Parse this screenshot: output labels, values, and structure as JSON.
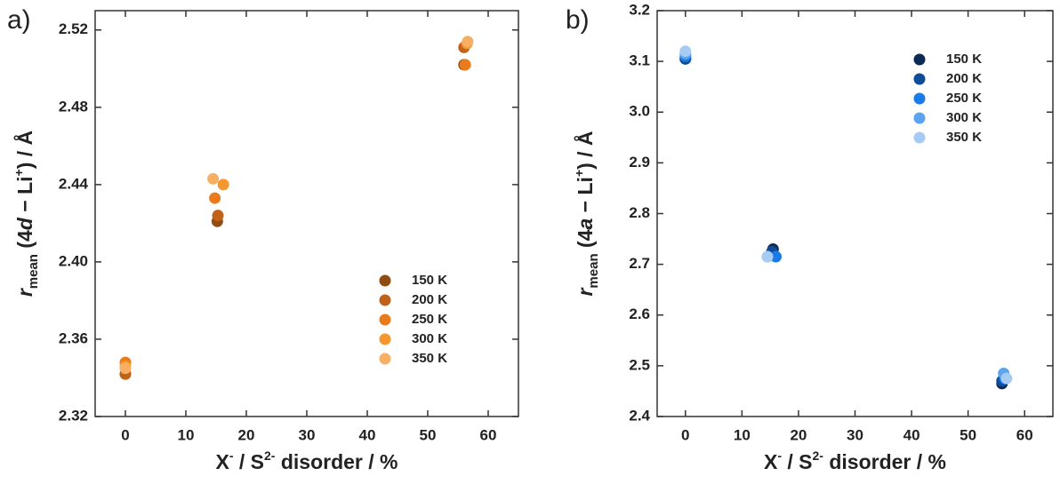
{
  "chart_data": [
    {
      "type": "scatter",
      "panel_label": "a)",
      "xlabel_parts": [
        "X",
        "-",
        " / S",
        "2-",
        " disorder / %"
      ],
      "ylabel_parts": [
        "r",
        "mean",
        " (4",
        "d",
        " − Li",
        "+",
        ") / Å"
      ],
      "xlim": [
        -5,
        65
      ],
      "xticks": [
        0,
        10,
        20,
        30,
        40,
        50,
        60
      ],
      "ylim": [
        2.32,
        2.53
      ],
      "yticks": [
        2.32,
        2.36,
        {
          "value": 2.4,
          "label": "2.40"
        },
        2.44,
        2.48,
        2.52
      ],
      "legend": "lower right",
      "series": [
        {
          "name": "150 K",
          "color": "#8f4d14",
          "x": [
            0,
            15.2,
            56
          ],
          "values": [
            2.342,
            2.421,
            2.502
          ]
        },
        {
          "name": "200 K",
          "color": "#c0621a",
          "x": [
            0,
            15.3,
            56
          ],
          "values": [
            2.342,
            2.424,
            2.511
          ]
        },
        {
          "name": "250 K",
          "color": "#e97b1c",
          "x": [
            0,
            14.8,
            56.2
          ],
          "values": [
            2.348,
            2.433,
            2.502
          ]
        },
        {
          "name": "300 K",
          "color": "#f5962e",
          "x": [
            0,
            16.2,
            56.5
          ],
          "values": [
            2.346,
            2.44,
            2.513
          ]
        },
        {
          "name": "350 K",
          "color": "#f7b063",
          "x": [
            0,
            14.5,
            56.6
          ],
          "values": [
            2.345,
            2.443,
            2.514
          ]
        }
      ]
    },
    {
      "type": "scatter",
      "panel_label": "b)",
      "xlabel_parts": [
        "X",
        "-",
        " / S",
        "2-",
        " disorder / %"
      ],
      "ylabel_parts": [
        "r",
        "mean",
        " (4",
        "a",
        " − Li",
        "+",
        ") / Å"
      ],
      "xlim": [
        -5,
        65
      ],
      "xticks": [
        0,
        10,
        20,
        30,
        40,
        50,
        60
      ],
      "ylim": [
        2.4,
        3.2
      ],
      "yticks": [
        2.4,
        2.5,
        2.6,
        2.7,
        2.8,
        2.9,
        {
          "value": 3,
          "label": "3.0"
        },
        3.1,
        3.2
      ],
      "legend": "upper right",
      "series": [
        {
          "name": "150 K",
          "color": "#0d2a57",
          "x": [
            0,
            15.5,
            56
          ],
          "values": [
            3.105,
            2.73,
            2.465
          ]
        },
        {
          "name": "200 K",
          "color": "#0f4c9a",
          "x": [
            0,
            15.3,
            56
          ],
          "values": [
            3.105,
            2.725,
            2.47
          ]
        },
        {
          "name": "250 K",
          "color": "#1a7be8",
          "x": [
            0,
            16,
            56.5
          ],
          "values": [
            3.11,
            2.715,
            2.475
          ]
        },
        {
          "name": "300 K",
          "color": "#5aa4ef",
          "x": [
            0,
            14.5,
            56.3
          ],
          "values": [
            3.115,
            2.715,
            2.485
          ]
        },
        {
          "name": "350 K",
          "color": "#a6ccf5",
          "x": [
            0,
            14.5,
            56.8
          ],
          "values": [
            3.12,
            2.715,
            2.475
          ]
        }
      ]
    }
  ]
}
